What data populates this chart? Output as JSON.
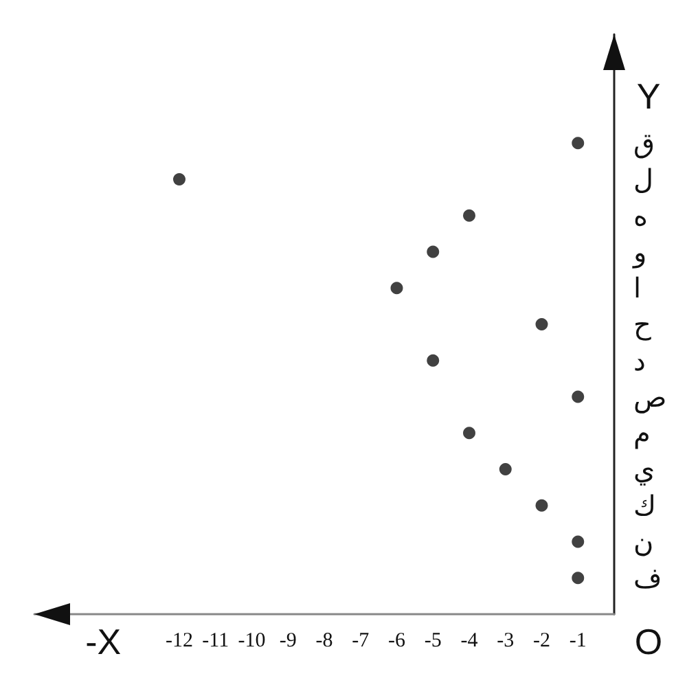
{
  "chart_data": {
    "type": "scatter",
    "orientation": "horizontal",
    "xlabel": "-X",
    "ylabel": "Y",
    "annotations": [
      "O"
    ],
    "categories": [
      "ق",
      "ل",
      "ه",
      "و",
      "ا",
      "ح",
      "د",
      "ص",
      "م",
      "ي",
      "ك",
      "ن",
      "ف"
    ],
    "values": [
      -1,
      -12,
      -4,
      -5,
      -6,
      -2,
      -5,
      -1,
      -4,
      -3,
      -2,
      -1,
      -1
    ],
    "color": "#111111",
    "marker": "circle",
    "grid": false,
    "xlim": [
      -16,
      0
    ],
    "xticks": [
      -12,
      -11,
      -10,
      -9,
      -8,
      -7,
      -6,
      -5,
      -4,
      -3,
      -2,
      -1
    ]
  }
}
